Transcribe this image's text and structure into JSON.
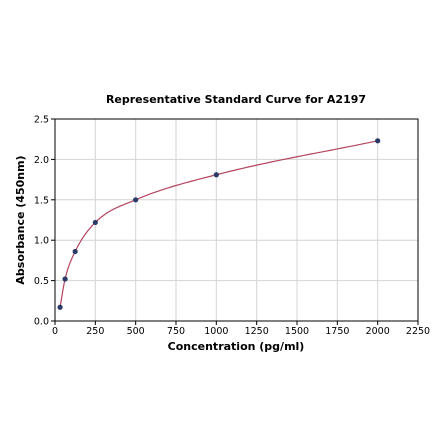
{
  "chart_data": {
    "type": "scatter",
    "title": "Representative Standard Curve for A2197",
    "xlabel": "Concentration (pg/ml)",
    "ylabel": "Absorbance (450nm)",
    "xlim": [
      0,
      2250
    ],
    "ylim": [
      0,
      2.5
    ],
    "xticks": [
      "0",
      "250",
      "500",
      "750",
      "1000",
      "1250",
      "1500",
      "1750",
      "2000",
      "2250"
    ],
    "yticks": [
      "0.0",
      "0.5",
      "1.0",
      "1.5",
      "2.0",
      "2.5"
    ],
    "grid": true,
    "series": [
      {
        "points": [
          {
            "x": 31.25,
            "y": 0.17
          },
          {
            "x": 62.5,
            "y": 0.52
          },
          {
            "x": 125,
            "y": 0.86
          },
          {
            "x": 250,
            "y": 1.22
          },
          {
            "x": 500,
            "y": 1.5
          },
          {
            "x": 1000,
            "y": 1.81
          },
          {
            "x": 2000,
            "y": 2.23
          }
        ],
        "marker_color": "#2b3a67",
        "fit_line_color": "#b5455e"
      }
    ]
  }
}
